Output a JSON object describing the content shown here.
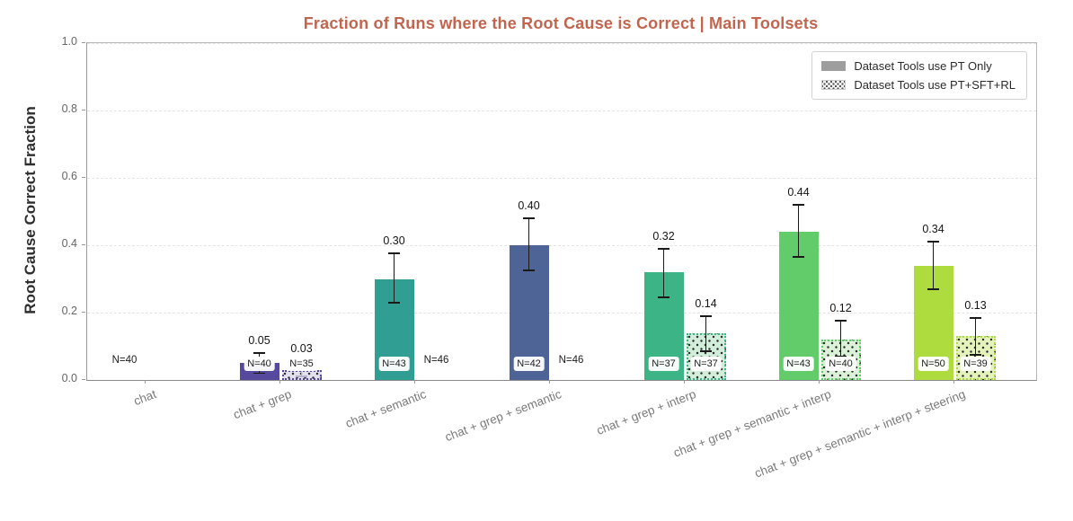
{
  "title": "Fraction of Runs where the Root Cause is Correct | Main Toolsets",
  "title_color": "#c2654e",
  "ylabel": "Root Cause Correct Fraction",
  "legend": [
    {
      "label": "Dataset Tools use PT Only",
      "swatch": "solid"
    },
    {
      "label": "Dataset Tools use PT+SFT+RL",
      "swatch": "dotted"
    }
  ],
  "chart_data": {
    "type": "bar",
    "title": "Fraction of Runs where the Root Cause is Correct | Main Toolsets",
    "xlabel": "",
    "ylabel": "Root Cause Correct Fraction",
    "ylim": [
      0,
      1.0
    ],
    "yticks": [
      0.0,
      0.2,
      0.4,
      0.6,
      0.8,
      1.0
    ],
    "grid": "horizontal-dashed",
    "legend_position": "top-right-inside",
    "categories": [
      "chat",
      "chat + grep",
      "chat + semantic",
      "chat + grep + semantic",
      "chat + grep + interp",
      "chat + grep + semantic + interp",
      "chat + grep + semantic + interp + steering"
    ],
    "colors": [
      "#56489c",
      "#56489c",
      "#319e93",
      "#4e6496",
      "#3cb486",
      "#62cb6a",
      "#aedc3f"
    ],
    "colors_light": [
      "#e2dfee",
      "#e2dfee",
      "#cde8e5",
      "#d4dcea",
      "#d2edda",
      "#dbf2d9",
      "#e4f2bb"
    ],
    "series": [
      {
        "name": "Dataset Tools use PT Only",
        "style": "solid",
        "values": [
          0.0,
          0.05,
          0.3,
          0.4,
          0.32,
          0.44,
          0.34
        ],
        "errors": [
          null,
          [
            0.02,
            0.08
          ],
          [
            0.23,
            0.375
          ],
          [
            0.325,
            0.48
          ],
          [
            0.245,
            0.39
          ],
          [
            0.365,
            0.52
          ],
          [
            0.27,
            0.41
          ]
        ],
        "n": [
          40,
          40,
          43,
          42,
          37,
          43,
          50
        ]
      },
      {
        "name": "Dataset Tools use PT+SFT+RL",
        "style": "dotted",
        "values": [
          null,
          0.03,
          0.0,
          0.0,
          0.14,
          0.12,
          0.13
        ],
        "errors": [
          null,
          [
            0.01,
            0.055
          ],
          null,
          null,
          [
            0.085,
            0.19
          ],
          [
            0.07,
            0.175
          ],
          [
            0.075,
            0.185
          ]
        ],
        "error_colors": [
          null,
          "#b6b0cc",
          null,
          null,
          "#1a1a1a",
          "#1a1a1a",
          "#1a1a1a"
        ],
        "n": [
          null,
          35,
          46,
          46,
          37,
          40,
          39
        ]
      }
    ]
  }
}
